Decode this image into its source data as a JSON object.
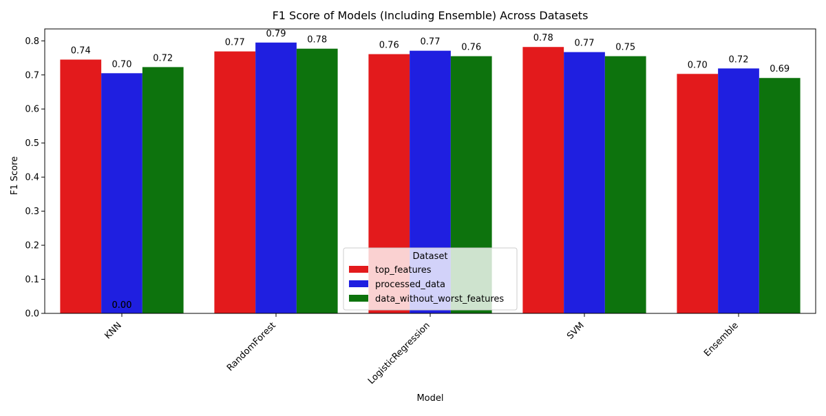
{
  "chart_data": {
    "type": "bar",
    "title": "F1 Score of Models (Including Ensemble) Across Datasets",
    "xlabel": "Model",
    "ylabel": "F1 Score",
    "ylim": [
      0,
      0.835
    ],
    "yticks": [
      "0.0",
      "0.1",
      "0.2",
      "0.3",
      "0.4",
      "0.5",
      "0.6",
      "0.7",
      "0.8"
    ],
    "categories": [
      "KNN",
      "RandomForest",
      "LogisticRegression",
      "SVM",
      "Ensemble"
    ],
    "grid": false,
    "legend": {
      "title": "Dataset",
      "placement": "lower-center"
    },
    "series": [
      {
        "name": "top_features",
        "color": "#e31a1c",
        "values": [
          0.745,
          0.769,
          0.761,
          0.782,
          0.703
        ],
        "labels": [
          "0.74",
          "0.77",
          "0.76",
          "0.78",
          "0.70"
        ]
      },
      {
        "name": "processed_data",
        "color": "#1f1fe0",
        "values": [
          0.705,
          0.795,
          0.771,
          0.767,
          0.719
        ],
        "labels": [
          "0.70",
          "0.79",
          "0.77",
          "0.77",
          "0.72"
        ]
      },
      {
        "name": "data_without_worst_features",
        "color": "#0d730d",
        "values": [
          0.723,
          0.777,
          0.755,
          0.755,
          0.691
        ],
        "labels": [
          "0.72",
          "0.78",
          "0.76",
          "0.75",
          "0.69"
        ]
      }
    ],
    "annotations": [
      "0.00",
      "0.00"
    ]
  }
}
